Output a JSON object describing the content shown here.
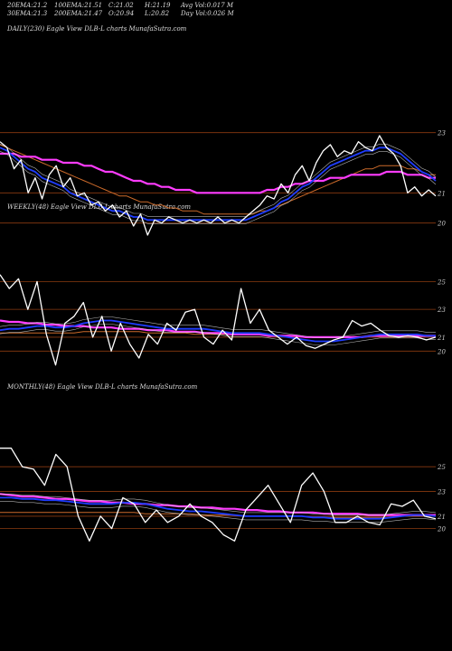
{
  "header": {
    "row1": [
      {
        "label": "20EMA:",
        "value": "21.2"
      },
      {
        "label": "100EMA:",
        "value": "21.51"
      },
      {
        "label": "C:",
        "value": "21.02"
      },
      {
        "label": "H:",
        "value": "21.19"
      },
      {
        "label": "Avg Vol:",
        "value": "0.017 M"
      }
    ],
    "row2": [
      {
        "label": "30EMA:",
        "value": "21.3"
      },
      {
        "label": "200EMA:",
        "value": "21.47"
      },
      {
        "label": "O:",
        "value": "20.94"
      },
      {
        "label": "L:",
        "value": "20.82"
      },
      {
        "label": "Day Vol:",
        "value": "0.026  M"
      }
    ]
  },
  "colors": {
    "background": "#000000",
    "price": "#ffffff",
    "ema_short": "#1e3cff",
    "ema_long": "#ff3cff",
    "ema_mid": "#cc6a2a",
    "envelope": "#dddddd",
    "level_line": "#8a3a10"
  },
  "chart_data": [
    {
      "type": "line",
      "label": "DAILY(230) Eagle  View  DLB-L  charts MunafaSutra.com",
      "y_ticks": [
        20,
        21,
        23
      ],
      "y_levels": [
        20,
        21,
        23
      ],
      "ylim": [
        19.3,
        23.8
      ],
      "series": [
        {
          "role": "price",
          "values": [
            22.7,
            22.5,
            21.8,
            22.1,
            21.0,
            21.5,
            20.8,
            21.6,
            21.9,
            21.2,
            21.5,
            20.9,
            21.0,
            20.6,
            20.7,
            20.4,
            20.6,
            20.2,
            20.4,
            19.9,
            20.3,
            19.6,
            20.1,
            20.0,
            20.2,
            20.1,
            20.0,
            20.1,
            20.0,
            20.1,
            20.0,
            20.2,
            20.0,
            20.1,
            20.0,
            20.2,
            20.4,
            20.6,
            20.9,
            20.8,
            21.3,
            21.0,
            21.6,
            21.9,
            21.4,
            22.0,
            22.4,
            22.6,
            22.2,
            22.4,
            22.3,
            22.7,
            22.5,
            22.4,
            22.9,
            22.5,
            22.3,
            21.9,
            21.0,
            21.2,
            20.9,
            21.1,
            20.9
          ]
        },
        {
          "role": "ema_short",
          "values": [
            22.5,
            22.4,
            22.2,
            22.0,
            21.8,
            21.7,
            21.5,
            21.4,
            21.3,
            21.2,
            21.0,
            20.9,
            20.8,
            20.7,
            20.6,
            20.5,
            20.4,
            20.4,
            20.3,
            20.2,
            20.2,
            20.1,
            20.1,
            20.1,
            20.1,
            20.1,
            20.1,
            20.1,
            20.1,
            20.1,
            20.1,
            20.1,
            20.1,
            20.1,
            20.1,
            20.1,
            20.2,
            20.3,
            20.4,
            20.5,
            20.7,
            20.8,
            21.0,
            21.2,
            21.3,
            21.5,
            21.7,
            21.9,
            22.0,
            22.1,
            22.2,
            22.3,
            22.4,
            22.4,
            22.5,
            22.5,
            22.4,
            22.3,
            22.1,
            21.9,
            21.7,
            21.6,
            21.4
          ]
        },
        {
          "role": "ema_mid",
          "values": [
            22.6,
            22.5,
            22.4,
            22.3,
            22.2,
            22.1,
            22.0,
            21.9,
            21.8,
            21.7,
            21.6,
            21.5,
            21.4,
            21.3,
            21.2,
            21.1,
            21.0,
            20.9,
            20.9,
            20.8,
            20.7,
            20.7,
            20.6,
            20.6,
            20.5,
            20.5,
            20.4,
            20.4,
            20.4,
            20.3,
            20.3,
            20.3,
            20.3,
            20.3,
            20.3,
            20.3,
            20.3,
            20.4,
            20.4,
            20.5,
            20.6,
            20.7,
            20.8,
            20.9,
            21.0,
            21.1,
            21.2,
            21.3,
            21.4,
            21.5,
            21.6,
            21.7,
            21.8,
            21.8,
            21.9,
            21.9,
            21.9,
            21.9,
            21.8,
            21.8,
            21.7,
            21.6,
            21.6
          ]
        },
        {
          "role": "ema_long",
          "values": [
            22.3,
            22.3,
            22.3,
            22.2,
            22.2,
            22.2,
            22.1,
            22.1,
            22.1,
            22.0,
            22.0,
            22.0,
            21.9,
            21.9,
            21.8,
            21.7,
            21.7,
            21.6,
            21.5,
            21.4,
            21.4,
            21.3,
            21.3,
            21.2,
            21.2,
            21.1,
            21.1,
            21.1,
            21.0,
            21.0,
            21.0,
            21.0,
            21.0,
            21.0,
            21.0,
            21.0,
            21.0,
            21.0,
            21.1,
            21.1,
            21.2,
            21.2,
            21.3,
            21.3,
            21.4,
            21.4,
            21.4,
            21.5,
            21.5,
            21.5,
            21.6,
            21.6,
            21.6,
            21.6,
            21.6,
            21.7,
            21.7,
            21.7,
            21.6,
            21.6,
            21.6,
            21.5,
            21.5
          ]
        }
      ]
    },
    {
      "type": "line",
      "label": "WEEKLY(48) Eagle  View  DLB-L  charts MunafaSutra.com",
      "y_ticks": [
        20,
        21,
        23,
        25
      ],
      "y_levels": [
        20,
        21,
        23,
        25
      ],
      "ylim": [
        18.2,
        26.0
      ],
      "series": [
        {
          "role": "price",
          "values": [
            25.5,
            24.5,
            25.2,
            23.0,
            25.0,
            21.2,
            19.0,
            22.0,
            22.5,
            23.5,
            21.0,
            22.5,
            20.0,
            22.0,
            20.5,
            19.5,
            21.2,
            20.5,
            22.0,
            21.5,
            22.8,
            23.0,
            21.0,
            20.5,
            21.5,
            20.8,
            24.5,
            22.0,
            23.0,
            21.5,
            21.0,
            20.5,
            21.0,
            20.4,
            20.2,
            20.5,
            20.8,
            21.0,
            22.2,
            21.8,
            22.0,
            21.5,
            21.1,
            21.0,
            21.1,
            21.0,
            20.8,
            21.0
          ]
        },
        {
          "role": "ema_short",
          "values": [
            21.5,
            21.6,
            21.6,
            21.7,
            21.8,
            21.8,
            21.7,
            21.7,
            21.8,
            22.0,
            22.1,
            22.2,
            22.2,
            22.1,
            22.0,
            21.9,
            21.8,
            21.7,
            21.6,
            21.6,
            21.6,
            21.6,
            21.6,
            21.5,
            21.4,
            21.3,
            21.3,
            21.3,
            21.3,
            21.2,
            21.1,
            21.0,
            20.9,
            20.8,
            20.7,
            20.7,
            20.7,
            20.8,
            20.9,
            21.0,
            21.1,
            21.2,
            21.2,
            21.2,
            21.2,
            21.2,
            21.1,
            21.1
          ]
        },
        {
          "role": "ema_mid",
          "values": [
            21.3,
            21.3,
            21.3,
            21.3,
            21.3,
            21.3,
            21.3,
            21.3,
            21.3,
            21.4,
            21.4,
            21.4,
            21.4,
            21.4,
            21.4,
            21.4,
            21.3,
            21.3,
            21.3,
            21.3,
            21.3,
            21.2,
            21.2,
            21.2,
            21.2,
            21.2,
            21.2,
            21.2,
            21.2,
            21.1,
            21.1,
            21.1,
            21.1,
            21.0,
            21.0,
            21.0,
            21.0,
            21.0,
            21.0,
            21.0,
            21.1,
            21.1,
            21.1,
            21.1,
            21.1,
            21.1,
            21.1,
            21.1
          ]
        },
        {
          "role": "ema_long",
          "values": [
            22.2,
            22.1,
            22.1,
            22.0,
            22.0,
            21.9,
            21.9,
            21.8,
            21.8,
            21.8,
            21.7,
            21.7,
            21.7,
            21.6,
            21.6,
            21.6,
            21.5,
            21.5,
            21.5,
            21.4,
            21.4,
            21.4,
            21.3,
            21.3,
            21.3,
            21.2,
            21.2,
            21.2,
            21.2,
            21.1,
            21.1,
            21.1,
            21.1,
            21.0,
            21.0,
            21.0,
            21.0,
            21.0,
            21.0,
            21.0,
            21.1,
            21.1,
            21.1,
            21.1,
            21.1,
            21.1,
            21.1,
            21.1
          ]
        }
      ]
    },
    {
      "type": "line",
      "label": "MONTHLY(48) Eagle  View  DLB-L  charts MunafaSutra.com",
      "y_ticks": [
        20,
        21,
        23,
        25
      ],
      "y_levels": [
        20,
        21,
        23,
        25
      ],
      "ylim": [
        18.0,
        27.5
      ],
      "series": [
        {
          "role": "price",
          "values": [
            26.5,
            26.5,
            25.0,
            24.8,
            23.5,
            26.0,
            25.0,
            21.0,
            19.0,
            21.0,
            20.0,
            22.5,
            22.0,
            20.5,
            21.5,
            20.5,
            21.0,
            22.0,
            21.0,
            20.5,
            19.5,
            19.0,
            21.5,
            22.5,
            23.5,
            22.0,
            20.5,
            23.5,
            24.5,
            23.0,
            20.5,
            20.5,
            21.0,
            20.5,
            20.3,
            22.0,
            21.8,
            22.3,
            21.0,
            20.8
          ]
        },
        {
          "role": "ema_short",
          "values": [
            22.5,
            22.5,
            22.4,
            22.4,
            22.3,
            22.3,
            22.2,
            22.1,
            22.0,
            22.0,
            22.0,
            22.1,
            22.1,
            22.0,
            21.8,
            21.6,
            21.5,
            21.4,
            21.4,
            21.3,
            21.2,
            21.1,
            21.0,
            21.0,
            21.0,
            21.0,
            21.0,
            21.0,
            20.9,
            20.9,
            20.8,
            20.8,
            20.8,
            20.8,
            20.8,
            20.9,
            21.0,
            21.1,
            21.1,
            21.0
          ]
        },
        {
          "role": "ema_mid",
          "values": [
            21.3,
            21.3,
            21.3,
            21.3,
            21.3,
            21.3,
            21.3,
            21.3,
            21.3,
            21.3,
            21.3,
            21.3,
            21.3,
            21.2,
            21.2,
            21.2,
            21.2,
            21.2,
            21.1,
            21.1,
            21.1,
            21.1,
            21.0,
            21.0,
            21.0,
            21.0,
            21.0,
            21.0,
            20.9,
            20.9,
            20.9,
            20.9,
            20.9,
            20.9,
            20.9,
            20.9,
            21.0,
            21.0,
            21.0,
            21.0
          ]
        },
        {
          "role": "ema_long",
          "values": [
            22.8,
            22.7,
            22.6,
            22.6,
            22.5,
            22.4,
            22.4,
            22.3,
            22.2,
            22.2,
            22.1,
            22.1,
            22.0,
            22.0,
            21.9,
            21.9,
            21.8,
            21.8,
            21.7,
            21.7,
            21.6,
            21.6,
            21.5,
            21.5,
            21.4,
            21.4,
            21.3,
            21.3,
            21.3,
            21.2,
            21.2,
            21.2,
            21.2,
            21.1,
            21.1,
            21.1,
            21.1,
            21.1,
            21.1,
            21.1
          ]
        }
      ]
    }
  ]
}
